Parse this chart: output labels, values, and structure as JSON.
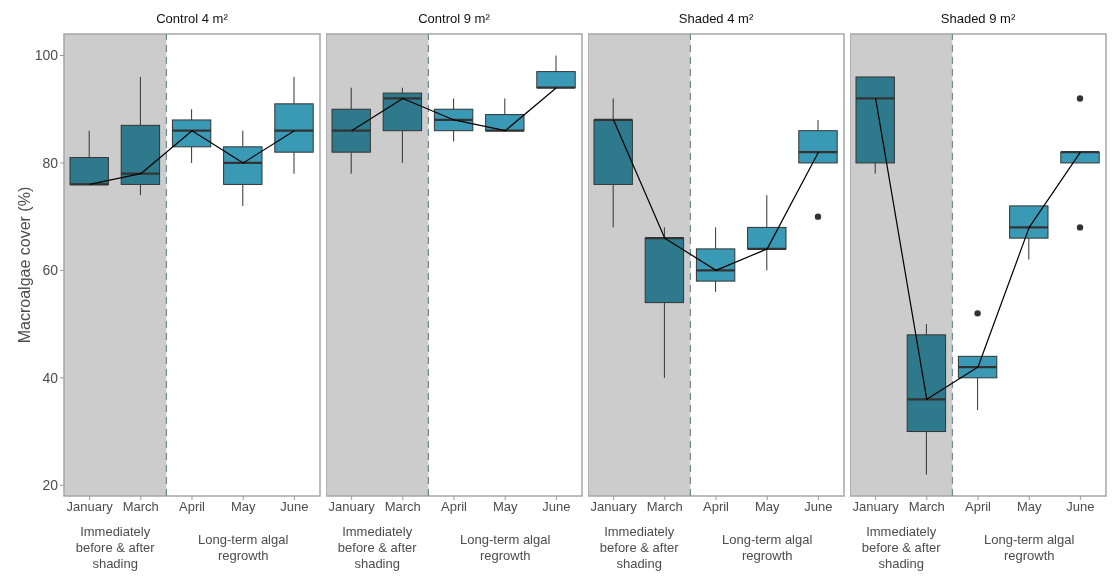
{
  "chart_data": [
    {
      "type": "box",
      "title": "Control 4 m²",
      "ylabel": "Macroalgae cover (%)",
      "categories": [
        "January",
        "March",
        "April",
        "May",
        "June"
      ],
      "colors": [
        "#2e7a8c",
        "#2e7a8c",
        "#3a9ab5",
        "#3a9ab5",
        "#3a9ab5"
      ],
      "boxes": [
        {
          "low": 76,
          "q1": 76,
          "median": 76,
          "q3": 81,
          "high": 86
        },
        {
          "low": 74,
          "q1": 76,
          "median": 78,
          "q3": 87,
          "high": 96
        },
        {
          "low": 80,
          "q1": 83,
          "median": 86,
          "q3": 88,
          "high": 90
        },
        {
          "low": 72,
          "q1": 76,
          "median": 80,
          "q3": 83,
          "high": 86
        },
        {
          "low": 78,
          "q1": 82,
          "median": 86,
          "q3": 91,
          "high": 96
        }
      ],
      "series": [
        {
          "type": "line",
          "color": "#000000",
          "values": [
            76,
            78,
            86,
            80,
            86
          ]
        }
      ],
      "bands": [
        {
          "axis": "x",
          "from": "January",
          "to": "March",
          "color": "#cccccc"
        }
      ],
      "annotations": [
        "Immediately before & after shading",
        "Long-term algal regrowth"
      ],
      "ylim": [
        18,
        104
      ],
      "yticks": [
        20,
        40,
        60,
        80,
        100
      ],
      "grid": false,
      "legend": false,
      "marker": "none"
    },
    {
      "type": "box",
      "title": "Control 9 m²",
      "categories": [
        "January",
        "March",
        "April",
        "May",
        "June"
      ],
      "colors": [
        "#2e7a8c",
        "#2e7a8c",
        "#3a9ab5",
        "#3a9ab5",
        "#3a9ab5"
      ],
      "boxes": [
        {
          "low": 78,
          "q1": 82,
          "median": 86,
          "q3": 90,
          "high": 94
        },
        {
          "low": 80,
          "q1": 86,
          "median": 92,
          "q3": 93,
          "high": 94
        },
        {
          "low": 84,
          "q1": 86,
          "median": 88,
          "q3": 90,
          "high": 92
        },
        {
          "low": 86,
          "q1": 86,
          "median": 86,
          "q3": 89,
          "high": 92
        },
        {
          "low": 94,
          "q1": 94,
          "median": 94,
          "q3": 97,
          "high": 100
        }
      ],
      "series": [
        {
          "type": "line",
          "color": "#000000",
          "values": [
            86,
            92,
            88,
            86,
            94
          ]
        }
      ],
      "bands": [
        {
          "axis": "x",
          "from": "January",
          "to": "March",
          "color": "#cccccc"
        }
      ],
      "annotations": [
        "Immediately before & after shading",
        "Long-term algal regrowth"
      ],
      "ylim": [
        18,
        104
      ],
      "yticks": [
        20,
        40,
        60,
        80,
        100
      ],
      "tick_labels": "x",
      "grid": false,
      "legend": false,
      "marker": "none"
    },
    {
      "type": "box",
      "title": "Shaded 4 m²",
      "categories": [
        "January",
        "March",
        "April",
        "May",
        "June"
      ],
      "colors": [
        "#2e7a8c",
        "#2e7a8c",
        "#3a9ab5",
        "#3a9ab5",
        "#3a9ab5"
      ],
      "boxes": [
        {
          "low": 68,
          "q1": 76,
          "median": 88,
          "q3": 88,
          "high": 92
        },
        {
          "low": 40,
          "q1": 54,
          "median": 66,
          "q3": 66,
          "high": 68
        },
        {
          "low": 56,
          "q1": 58,
          "median": 60,
          "q3": 64,
          "high": 68
        },
        {
          "low": 60,
          "q1": 64,
          "median": 64,
          "q3": 68,
          "high": 74
        },
        {
          "low": 80,
          "q1": 80,
          "median": 82,
          "q3": 86,
          "high": 88,
          "outliers": [
            70
          ]
        }
      ],
      "series": [
        {
          "type": "line",
          "color": "#000000",
          "values": [
            88,
            66,
            60,
            64,
            82
          ]
        }
      ],
      "bands": [
        {
          "axis": "x",
          "from": "January",
          "to": "March",
          "color": "#cccccc"
        }
      ],
      "annotations": [
        "Immediately before & after shading",
        "Long-term algal regrowth"
      ],
      "ylim": [
        18,
        104
      ],
      "yticks": [
        20,
        40,
        60,
        80,
        100
      ],
      "tick_labels": "x",
      "grid": false,
      "legend": false,
      "marker": "none"
    },
    {
      "type": "box",
      "title": "Shaded 9 m²",
      "categories": [
        "January",
        "March",
        "April",
        "May",
        "June"
      ],
      "colors": [
        "#2e7a8c",
        "#2e7a8c",
        "#3a9ab5",
        "#3a9ab5",
        "#3a9ab5"
      ],
      "boxes": [
        {
          "low": 78,
          "q1": 80,
          "median": 92,
          "q3": 96,
          "high": 96
        },
        {
          "low": 22,
          "q1": 30,
          "median": 36,
          "q3": 48,
          "high": 50
        },
        {
          "low": 34,
          "q1": 40,
          "median": 42,
          "q3": 44,
          "high": 44,
          "outliers": [
            52
          ]
        },
        {
          "low": 62,
          "q1": 66,
          "median": 68,
          "q3": 72,
          "high": 72
        },
        {
          "low": 80,
          "q1": 80,
          "median": 82,
          "q3": 82,
          "high": 82,
          "outliers": [
            92,
            68
          ]
        }
      ],
      "series": [
        {
          "type": "line",
          "color": "#000000",
          "values": [
            92,
            36,
            42,
            68,
            82
          ]
        }
      ],
      "bands": [
        {
          "axis": "x",
          "from": "January",
          "to": "March",
          "color": "#cccccc"
        }
      ],
      "annotations": [
        "Immediately before & after shading",
        "Long-term algal regrowth"
      ],
      "ylim": [
        18,
        104
      ],
      "yticks": [
        20,
        40,
        60,
        80,
        100
      ],
      "tick_labels": "x",
      "grid": false,
      "legend": false,
      "marker": "none"
    }
  ]
}
